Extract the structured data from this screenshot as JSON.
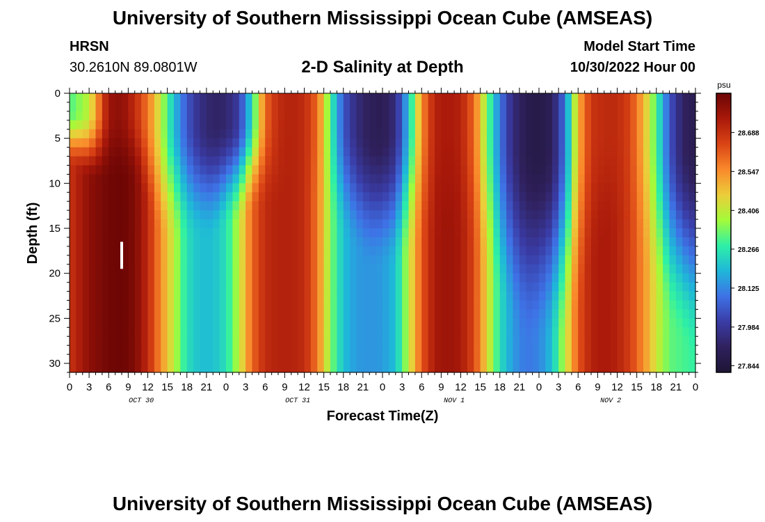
{
  "header": {
    "title": "University of Southern Mississippi Ocean Cube (AMSEAS)",
    "station": "HRSN",
    "coords": "30.2610N  89.0801W",
    "subtitle": "2-D Salinity at Depth",
    "model_start_label": "Model Start Time",
    "model_start_value": "10/30/2022 Hour 00"
  },
  "footer": {
    "title": "University of Southern Mississippi Ocean Cube (AMSEAS)"
  },
  "chart_data": {
    "type": "heatmap",
    "title": "2-D Salinity at Depth",
    "xlabel": "Forecast Time(Z)",
    "ylabel": "Depth (ft)",
    "x_unit": "forecast hour since 10/30/2022 00Z",
    "xlim": [
      0,
      96
    ],
    "ylim": [
      0,
      31
    ],
    "y_inverted": true,
    "x_ticks": [
      0,
      3,
      6,
      9,
      12,
      15,
      18,
      21,
      24,
      27,
      30,
      33,
      36,
      39,
      42,
      45,
      48,
      51,
      54,
      57,
      60,
      63,
      66,
      69,
      72,
      75,
      78,
      81,
      84,
      87,
      90,
      93,
      96
    ],
    "x_tick_labels": [
      "0",
      "3",
      "6",
      "9",
      "12",
      "15",
      "18",
      "21",
      "0",
      "3",
      "6",
      "9",
      "12",
      "15",
      "18",
      "21",
      "0",
      "3",
      "6",
      "9",
      "12",
      "15",
      "18",
      "21",
      "0",
      "3",
      "6",
      "9",
      "12",
      "15",
      "18",
      "21",
      "0"
    ],
    "date_labels": [
      {
        "hour": 11,
        "label": "OCT 30"
      },
      {
        "hour": 35,
        "label": "OCT 31"
      },
      {
        "hour": 59,
        "label": "NOV 1"
      },
      {
        "hour": 83,
        "label": "NOV 2"
      }
    ],
    "y_ticks": [
      0,
      5,
      10,
      15,
      20,
      25,
      30
    ],
    "y_tick_labels": [
      "0",
      "5",
      "10",
      "15",
      "20",
      "25",
      "30"
    ],
    "colorbar": {
      "unit": "psu",
      "min": 27.82,
      "max": 28.83,
      "tick_values": [
        27.844,
        27.984,
        28.125,
        28.266,
        28.406,
        28.547,
        28.688
      ],
      "tick_labels": [
        "27.844",
        "27.984",
        "28.125",
        "28.266",
        "28.406",
        "28.547",
        "28.688"
      ],
      "colors": [
        "#1d1535",
        "#30215e",
        "#3a3ca6",
        "#3e72e6",
        "#1fb7d9",
        "#2ef0a6",
        "#a3fb3a",
        "#eccd3a",
        "#f9892b",
        "#da4415",
        "#a9190a",
        "#6b0505"
      ]
    },
    "salinity_profile": {
      "description": "surface/bottom salinity (psu) at forecast hours, linearly interpolated with depth; transition depth in ft",
      "hours": [
        0,
        3,
        6,
        8,
        10,
        12,
        14,
        16,
        18,
        20,
        22,
        24,
        26,
        28,
        30,
        32,
        34,
        36,
        38,
        40,
        42,
        44,
        46,
        48,
        50,
        52,
        54,
        56,
        58,
        60,
        62,
        64,
        66,
        68,
        70,
        72,
        74,
        76,
        78,
        80,
        82,
        84,
        86,
        88,
        90,
        92,
        94,
        96
      ],
      "surface": [
        28.3,
        28.4,
        28.76,
        28.78,
        28.7,
        28.58,
        28.4,
        28.2,
        28.05,
        27.96,
        27.92,
        27.93,
        28.0,
        28.25,
        28.6,
        28.7,
        28.72,
        28.7,
        28.6,
        28.3,
        28.05,
        27.95,
        27.9,
        27.89,
        27.95,
        28.2,
        28.55,
        28.72,
        28.74,
        28.72,
        28.6,
        28.35,
        28.1,
        27.95,
        27.88,
        27.86,
        27.9,
        28.1,
        28.5,
        28.68,
        28.7,
        28.7,
        28.65,
        28.5,
        28.3,
        28.05,
        27.92,
        27.88
      ],
      "bottom": [
        28.68,
        28.78,
        28.82,
        28.83,
        28.8,
        28.7,
        28.55,
        28.4,
        28.25,
        28.2,
        28.2,
        28.25,
        28.4,
        28.6,
        28.7,
        28.72,
        28.72,
        28.7,
        28.58,
        28.35,
        28.2,
        28.15,
        28.14,
        28.15,
        28.2,
        28.4,
        28.62,
        28.74,
        28.76,
        28.74,
        28.65,
        28.45,
        28.25,
        28.15,
        28.1,
        28.12,
        28.2,
        28.4,
        28.62,
        28.72,
        28.74,
        28.72,
        28.66,
        28.55,
        28.42,
        28.32,
        28.3,
        28.28
      ],
      "transition_depth": [
        5,
        6,
        6,
        6,
        6,
        8,
        10,
        10,
        10,
        10,
        10,
        9,
        9,
        8,
        8,
        8,
        8,
        8,
        8,
        9,
        10,
        11,
        12,
        12,
        12,
        11,
        10,
        10,
        10,
        10,
        11,
        12,
        14,
        16,
        17,
        17,
        17,
        17,
        15,
        12,
        10,
        10,
        10,
        12,
        14,
        16,
        17,
        18
      ]
    },
    "markers": [
      {
        "type": "vertical-bar",
        "hour": 8,
        "depth_from": 16.5,
        "depth_to": 19.5,
        "color": "#ffffff"
      }
    ]
  }
}
